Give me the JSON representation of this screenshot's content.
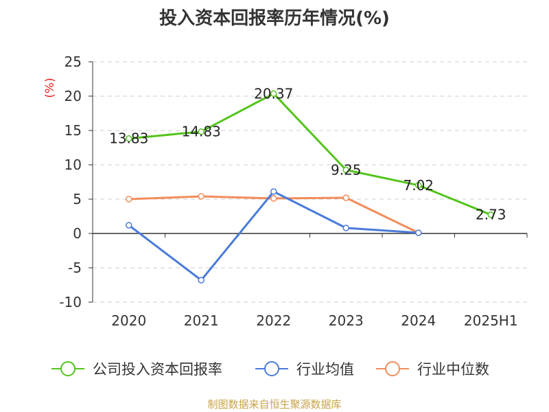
{
  "title": "投入资本回报率历年情况(%)",
  "source": "制图数据来自恒生聚源数据库",
  "chart_data": {
    "type": "line",
    "title": "投入资本回报率历年情况(%)",
    "ylabel": "(%)",
    "xlabel": "",
    "categories": [
      "2020",
      "2021",
      "2022",
      "2023",
      "2024",
      "2025H1"
    ],
    "ylim": [
      -10,
      25
    ],
    "yticks": [
      "25",
      "20",
      "15",
      "10",
      "5",
      "0",
      "-5",
      "-10"
    ],
    "grid": true,
    "legend_position": "bottom",
    "series": [
      {
        "name": "公司投入资本回报率",
        "color": "#52c41a",
        "values": [
          13.83,
          14.83,
          20.37,
          9.25,
          7.02,
          2.73
        ],
        "labels": [
          "13.83",
          "14.83",
          "20.37",
          "9.25",
          "7.02",
          "2.73"
        ]
      },
      {
        "name": "行业均值",
        "color": "#4a7bd9",
        "values": [
          1.2,
          -6.8,
          6.1,
          0.8,
          0.1,
          null
        ]
      },
      {
        "name": "行业中位数",
        "color": "#f28c5a",
        "values": [
          5.0,
          5.4,
          5.1,
          5.2,
          0.1,
          null
        ]
      }
    ]
  }
}
